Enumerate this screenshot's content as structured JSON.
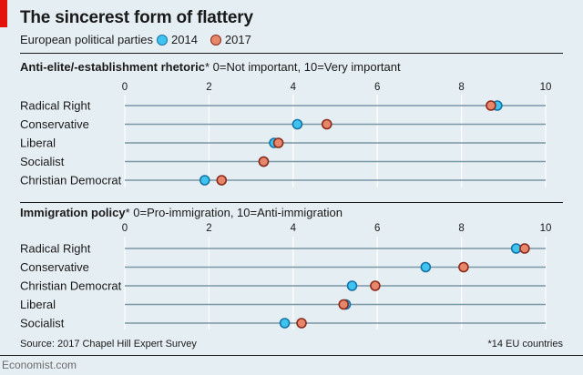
{
  "header": {
    "title": "The sincerest form of flattery",
    "subtitle": "European political parties",
    "legend_2014": "2014",
    "legend_2017": "2017"
  },
  "colors": {
    "c2014": "#3ec4ef",
    "c2017": "#e7866b",
    "stroke2014": "#1473a9",
    "stroke2017": "#8a2a1a",
    "line": "#7b96a4"
  },
  "panels": [
    {
      "title_bold": "Anti-elite/-establishment rhetoric",
      "title_rest": "* 0=Not important, 10=Very important"
    },
    {
      "title_bold": "Immigration policy",
      "title_rest": "* 0=Pro-immigration, 10=Anti-immigration"
    }
  ],
  "footer": {
    "source": "Source: 2017 Chapel Hill Expert Survey",
    "note": "*14 EU countries",
    "brand": "Economist.com"
  },
  "chart_data": [
    {
      "type": "scatter",
      "title": "Anti-elite/-establishment rhetoric",
      "xlim": [
        0,
        10
      ],
      "xticks": [
        0,
        2,
        4,
        6,
        8,
        10
      ],
      "categories": [
        "Radical Right",
        "Conservative",
        "Liberal",
        "Socialist",
        "Christian Democrat"
      ],
      "series": [
        {
          "name": "2014",
          "values": [
            8.85,
            4.1,
            3.55,
            3.3,
            1.9
          ]
        },
        {
          "name": "2017",
          "values": [
            8.7,
            4.8,
            3.65,
            3.3,
            2.3
          ]
        }
      ]
    },
    {
      "type": "scatter",
      "title": "Immigration policy",
      "xlim": [
        0,
        10
      ],
      "xticks": [
        0,
        2,
        4,
        6,
        8,
        10
      ],
      "categories": [
        "Radical Right",
        "Conservative",
        "Christian Democrat",
        "Liberal",
        "Socialist"
      ],
      "series": [
        {
          "name": "2014",
          "values": [
            9.3,
            7.15,
            5.4,
            5.25,
            3.8
          ]
        },
        {
          "name": "2017",
          "values": [
            9.5,
            8.05,
            5.95,
            5.2,
            4.2
          ]
        }
      ]
    }
  ]
}
